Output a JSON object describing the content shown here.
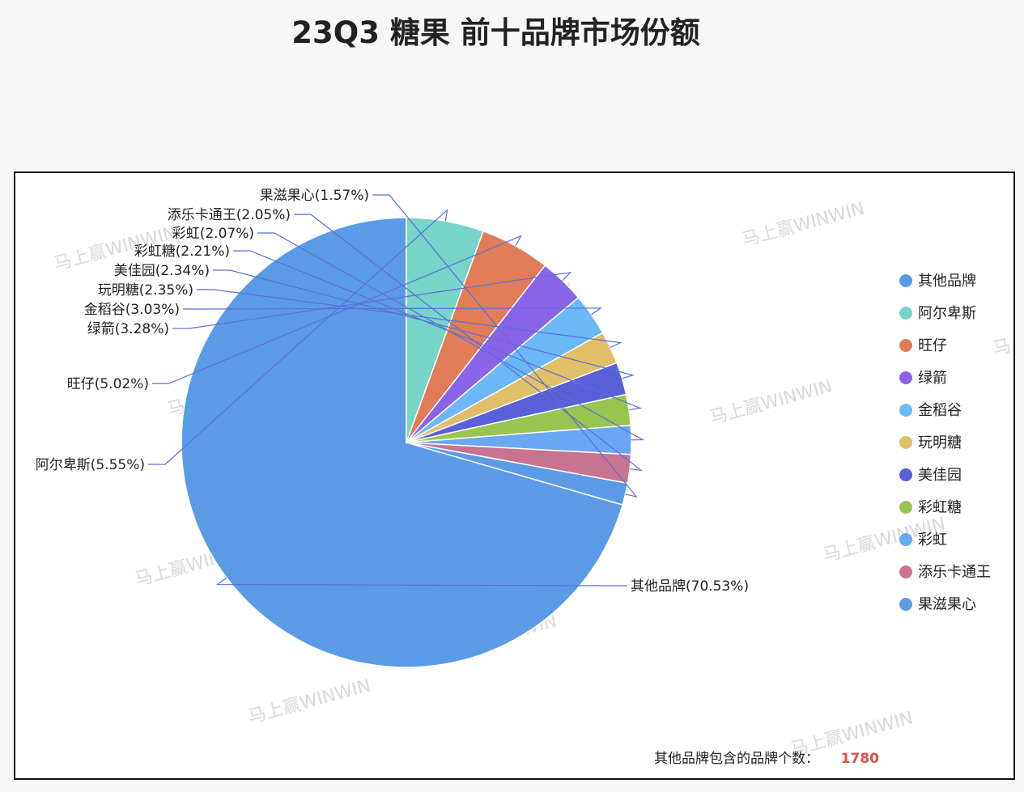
{
  "title": "23Q3 糖果 前十品牌市场份额",
  "watermark": "马上赢WINWIN",
  "footer": {
    "label": "其他品牌包含的品牌个数：",
    "value": "1780",
    "value_color": "#e0504a"
  },
  "chart_data": {
    "type": "pie",
    "title": "23Q3 糖果 前十品牌市场份额",
    "legend_position": "right",
    "unit": "%",
    "slices": [
      {
        "label": "其他品牌",
        "value": 70.53,
        "color": "#5b9be6"
      },
      {
        "label": "阿尔卑斯",
        "value": 5.55,
        "color": "#76d4c8"
      },
      {
        "label": "旺仔",
        "value": 5.02,
        "color": "#e07c57"
      },
      {
        "label": "绿箭",
        "value": 3.28,
        "color": "#8963e8"
      },
      {
        "label": "金稻谷",
        "value": 3.03,
        "color": "#6bb8f7"
      },
      {
        "label": "玩明糖",
        "value": 2.35,
        "color": "#e1bf69"
      },
      {
        "label": "美佳园",
        "value": 2.34,
        "color": "#5a60d8"
      },
      {
        "label": "彩虹糖",
        "value": 2.21,
        "color": "#98c44f"
      },
      {
        "label": "彩虹",
        "value": 2.07,
        "color": "#6aa8f5"
      },
      {
        "label": "添乐卡通王",
        "value": 2.05,
        "color": "#c87390"
      },
      {
        "label": "果滋果心",
        "value": 1.57,
        "color": "#5b9be6"
      }
    ],
    "leader_line_color": "#5b6fd8"
  }
}
